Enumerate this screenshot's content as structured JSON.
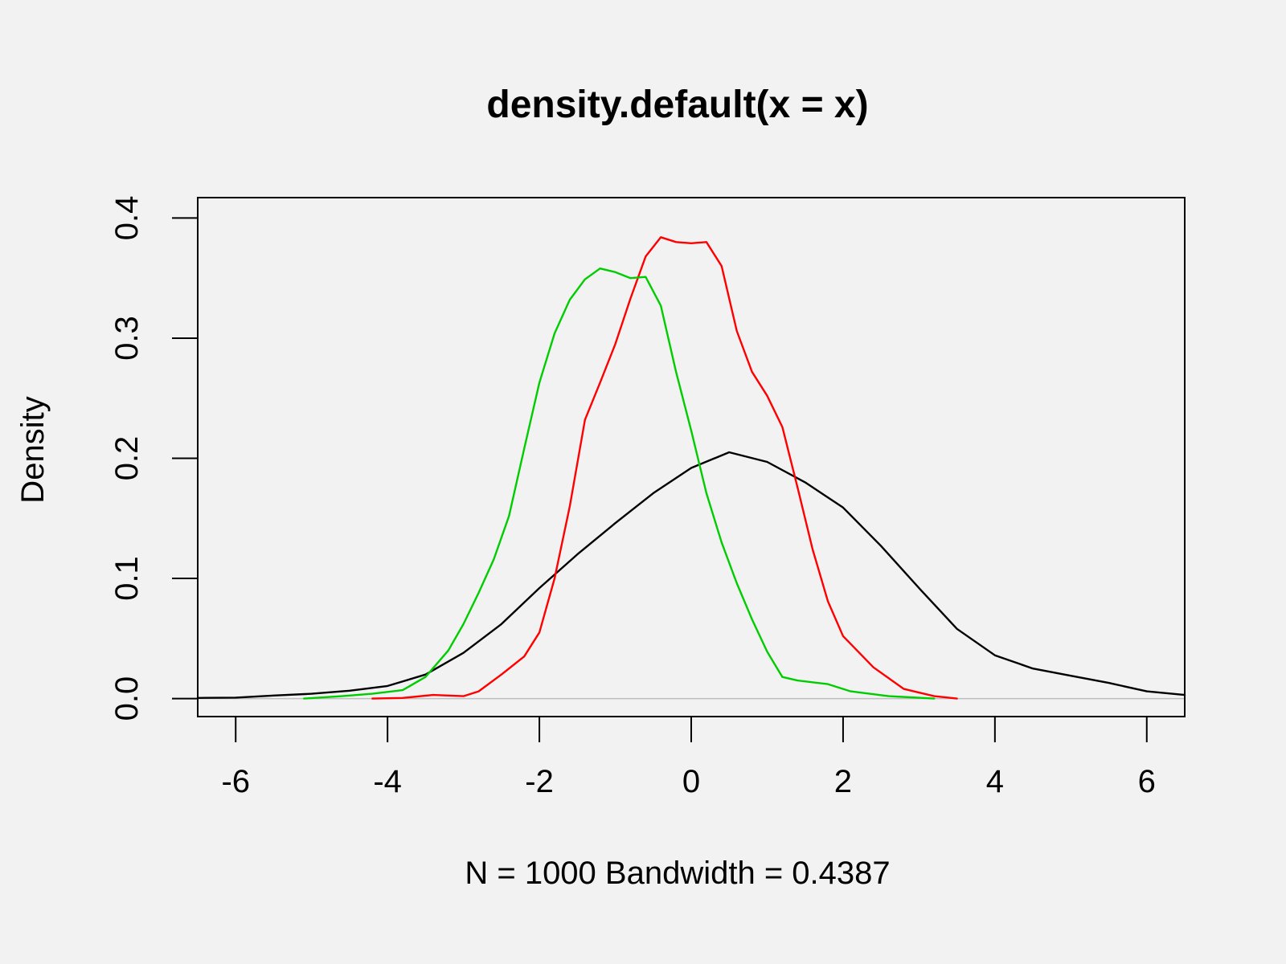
{
  "chart_data": {
    "type": "line",
    "title": "density.default(x = x)",
    "xlabel": "N = 1000   Bandwidth = 0.4387",
    "ylabel": "Density",
    "xlim": [
      -6.5,
      6.5
    ],
    "ylim": [
      -0.015,
      0.417
    ],
    "x_ticks": [
      -6,
      -4,
      -2,
      0,
      2,
      4,
      6
    ],
    "x_tick_labels": [
      "-6",
      "-4",
      "-2",
      "0",
      "2",
      "4",
      "6"
    ],
    "y_ticks": [
      0,
      0.1,
      0.2,
      0.3,
      0.4
    ],
    "y_tick_labels": [
      "0.0",
      "0.1",
      "0.2",
      "0.3",
      "0.4"
    ],
    "zero_line_color": "#bebebe",
    "grid": false,
    "series": [
      {
        "color": "#000000",
        "x": [
          -6.5,
          -6.0,
          -5.5,
          -5.0,
          -4.5,
          -4.0,
          -3.5,
          -3.0,
          -2.5,
          -2.0,
          -1.5,
          -1.0,
          -0.5,
          0.0,
          0.5,
          1.0,
          1.5,
          2.0,
          2.5,
          3.0,
          3.5,
          4.0,
          4.5,
          5.0,
          5.5,
          6.0,
          6.5
        ],
        "y": [
          0.0005,
          0.0008,
          0.0025,
          0.004,
          0.0065,
          0.0105,
          0.02,
          0.038,
          0.062,
          0.092,
          0.12,
          0.146,
          0.171,
          0.192,
          0.205,
          0.197,
          0.18,
          0.159,
          0.127,
          0.092,
          0.058,
          0.036,
          0.025,
          0.019,
          0.013,
          0.006,
          0.003
        ]
      },
      {
        "color": "#ff0000",
        "x": [
          -4.2,
          -3.8,
          -3.4,
          -3.0,
          -2.8,
          -2.5,
          -2.2,
          -2.0,
          -1.8,
          -1.6,
          -1.4,
          -1.2,
          -1.0,
          -0.8,
          -0.6,
          -0.4,
          -0.2,
          0.0,
          0.2,
          0.4,
          0.6,
          0.8,
          1.0,
          1.2,
          1.4,
          1.6,
          1.8,
          2.0,
          2.4,
          2.8,
          3.2,
          3.5
        ],
        "y": [
          0.0,
          0.0005,
          0.003,
          0.002,
          0.006,
          0.02,
          0.035,
          0.055,
          0.1,
          0.16,
          0.232,
          0.263,
          0.295,
          0.333,
          0.368,
          0.384,
          0.38,
          0.379,
          0.38,
          0.36,
          0.306,
          0.272,
          0.252,
          0.226,
          0.176,
          0.124,
          0.081,
          0.052,
          0.026,
          0.008,
          0.002,
          0.0
        ]
      },
      {
        "color": "#00cd00",
        "x": [
          -5.1,
          -4.6,
          -4.2,
          -3.8,
          -3.5,
          -3.2,
          -3.0,
          -2.8,
          -2.6,
          -2.4,
          -2.2,
          -2.0,
          -1.8,
          -1.6,
          -1.4,
          -1.2,
          -1.0,
          -0.8,
          -0.6,
          -0.4,
          -0.2,
          0.0,
          0.2,
          0.4,
          0.6,
          0.8,
          1.0,
          1.2,
          1.4,
          1.8,
          2.1,
          2.6,
          3.2
        ],
        "y": [
          0.0,
          0.002,
          0.004,
          0.007,
          0.018,
          0.04,
          0.062,
          0.088,
          0.116,
          0.152,
          0.208,
          0.263,
          0.304,
          0.332,
          0.349,
          0.358,
          0.355,
          0.35,
          0.351,
          0.327,
          0.272,
          0.223,
          0.171,
          0.13,
          0.096,
          0.066,
          0.039,
          0.018,
          0.015,
          0.012,
          0.006,
          0.002,
          0.0
        ]
      }
    ]
  }
}
